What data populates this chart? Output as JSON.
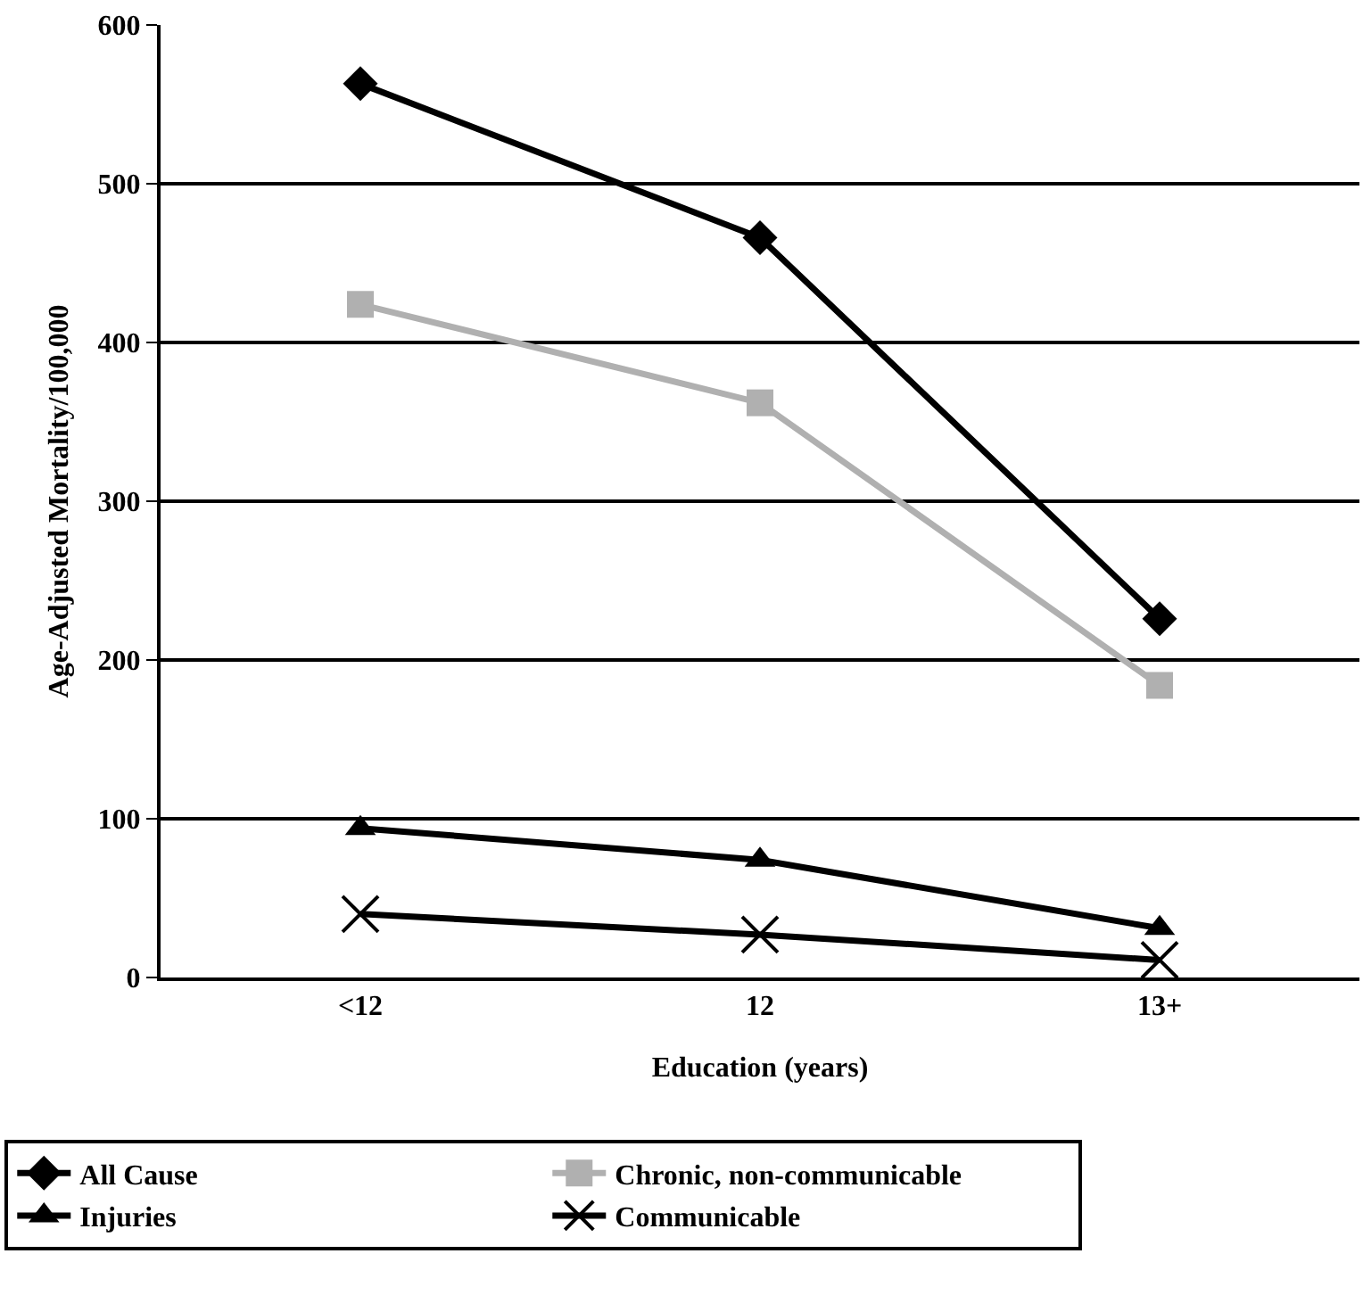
{
  "chart_data": {
    "type": "line",
    "xlabel": "Education (years)",
    "ylabel": "Age-Adjusted Mortality/100,000",
    "categories": [
      "<12",
      "12",
      "13+"
    ],
    "ylim": [
      0,
      600
    ],
    "yticks": [
      0,
      100,
      200,
      300,
      400,
      500,
      600
    ],
    "grid": "y",
    "legend": "bottom",
    "line_style": "solid",
    "series": [
      {
        "name": "All Cause",
        "color": "#000000",
        "marker": "diamond",
        "values": [
          563,
          466,
          226
        ]
      },
      {
        "name": "Chronic, non-communicable",
        "color": "#b0b0b0",
        "marker": "square",
        "values": [
          424,
          362,
          184
        ]
      },
      {
        "name": "Injuries",
        "color": "#000000",
        "marker": "triangle",
        "values": [
          94,
          74,
          31
        ]
      },
      {
        "name": "Communicable",
        "color": "#000000",
        "marker": "cross",
        "values": [
          40,
          27,
          11
        ]
      }
    ]
  }
}
